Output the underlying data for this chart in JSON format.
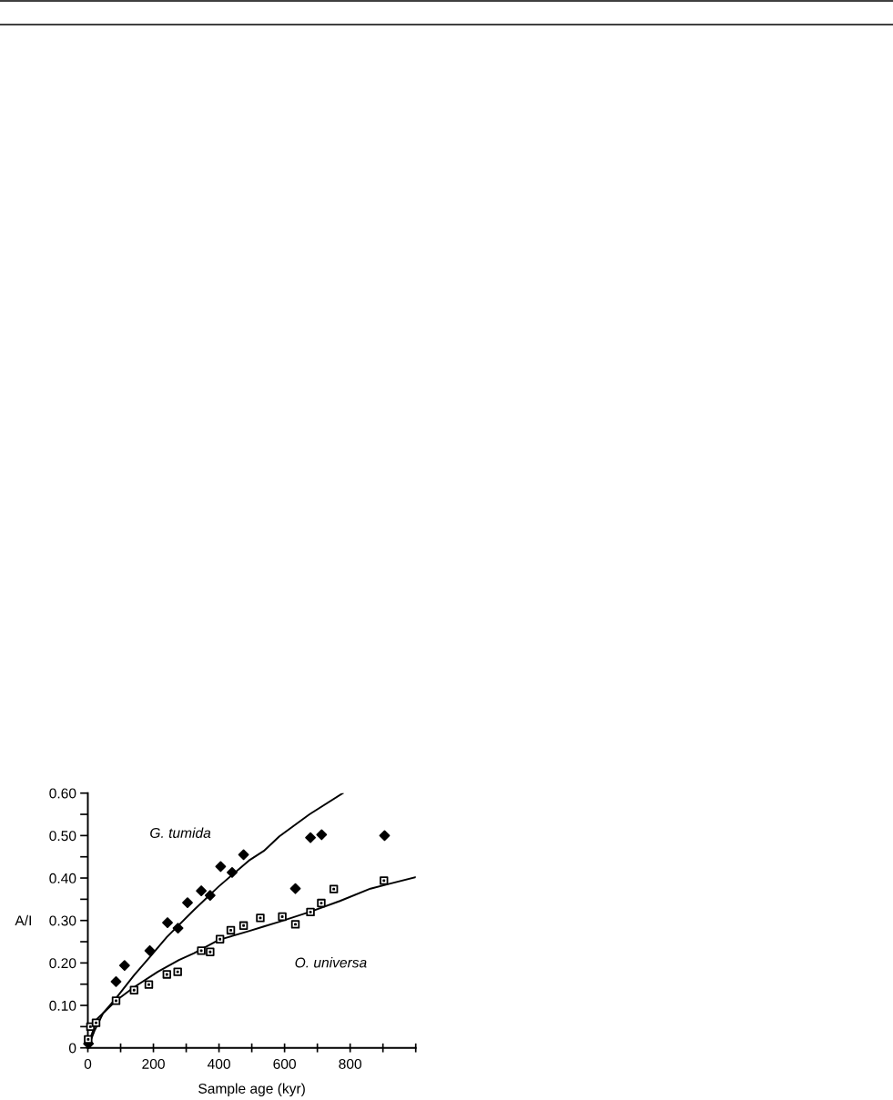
{
  "chart_data": {
    "type": "scatter",
    "xlabel": "Sample age (kyr)",
    "ylabel": "A/I",
    "xlim": [
      0,
      1000
    ],
    "ylim": [
      0,
      0.6
    ],
    "xticks": [
      0,
      {
        "value": 100,
        "label": null
      },
      200,
      {
        "value": 300,
        "label": null
      },
      400,
      {
        "value": 500,
        "label": null
      },
      600,
      {
        "value": 700,
        "label": null
      },
      800,
      {
        "value": 900,
        "label": null
      },
      {
        "value": 1000,
        "label": null
      }
    ],
    "yticks": [
      0,
      {
        "value": 0.05,
        "label": null
      },
      {
        "value": 0.1,
        "label": "0.10"
      },
      {
        "value": 0.15,
        "label": null
      },
      {
        "value": 0.2,
        "label": "0.20"
      },
      {
        "value": 0.25,
        "label": null
      },
      {
        "value": 0.3,
        "label": "0.30"
      },
      {
        "value": 0.35,
        "label": null
      },
      {
        "value": 0.4,
        "label": "0.40"
      },
      {
        "value": 0.45,
        "label": null
      },
      {
        "value": 0.5,
        "label": "0.50"
      },
      {
        "value": 0.55,
        "label": null
      },
      {
        "value": 0.6,
        "label": "0.60"
      }
    ],
    "grid": false,
    "legend": false,
    "annotations": [
      "G. tumida",
      "O. universa"
    ],
    "series": [
      {
        "marker": "diamond",
        "color": "#000000",
        "x": [
          2,
          86,
          112,
          189,
          243,
          275,
          304,
          346,
          373,
          405,
          440,
          475,
          633,
          679,
          713,
          905
        ],
        "values": [
          0.01,
          0.156,
          0.194,
          0.229,
          0.295,
          0.282,
          0.342,
          0.37,
          0.359,
          0.427,
          0.413,
          0.455,
          0.375,
          0.495,
          0.502,
          0.5
        ]
      },
      {
        "marker": "square",
        "color": "#000000",
        "x": [
          1,
          8,
          25,
          86,
          141,
          186,
          241,
          274,
          346,
          373,
          403,
          436,
          475,
          526,
          593,
          633,
          679,
          712,
          750,
          903
        ],
        "values": [
          0.02,
          0.05,
          0.059,
          0.111,
          0.136,
          0.149,
          0.173,
          0.179,
          0.229,
          0.226,
          0.256,
          0.277,
          0.288,
          0.306,
          0.309,
          0.291,
          0.32,
          0.341,
          0.374,
          0.394
        ]
      },
      {
        "type": "line",
        "marker": "none",
        "color": "#000000",
        "x": [
          0,
          20,
          47,
          87,
          141,
          189,
          241,
          324,
          399,
          491,
          537,
          584,
          676,
          778
        ],
        "values": [
          0,
          0.04,
          0.082,
          0.118,
          0.171,
          0.214,
          0.261,
          0.325,
          0.38,
          0.441,
          0.464,
          0.498,
          0.55,
          0.6
        ]
      },
      {
        "type": "line",
        "marker": "none",
        "color": "#000000",
        "x": [
          0,
          28,
          87,
          141,
          213,
          278,
          324,
          399,
          491,
          537,
          584,
          676,
          769,
          862,
          917,
          1000
        ],
        "values": [
          0.005,
          0.068,
          0.112,
          0.143,
          0.179,
          0.207,
          0.223,
          0.254,
          0.275,
          0.286,
          0.297,
          0.32,
          0.346,
          0.375,
          0.386,
          0.402
        ]
      }
    ]
  }
}
